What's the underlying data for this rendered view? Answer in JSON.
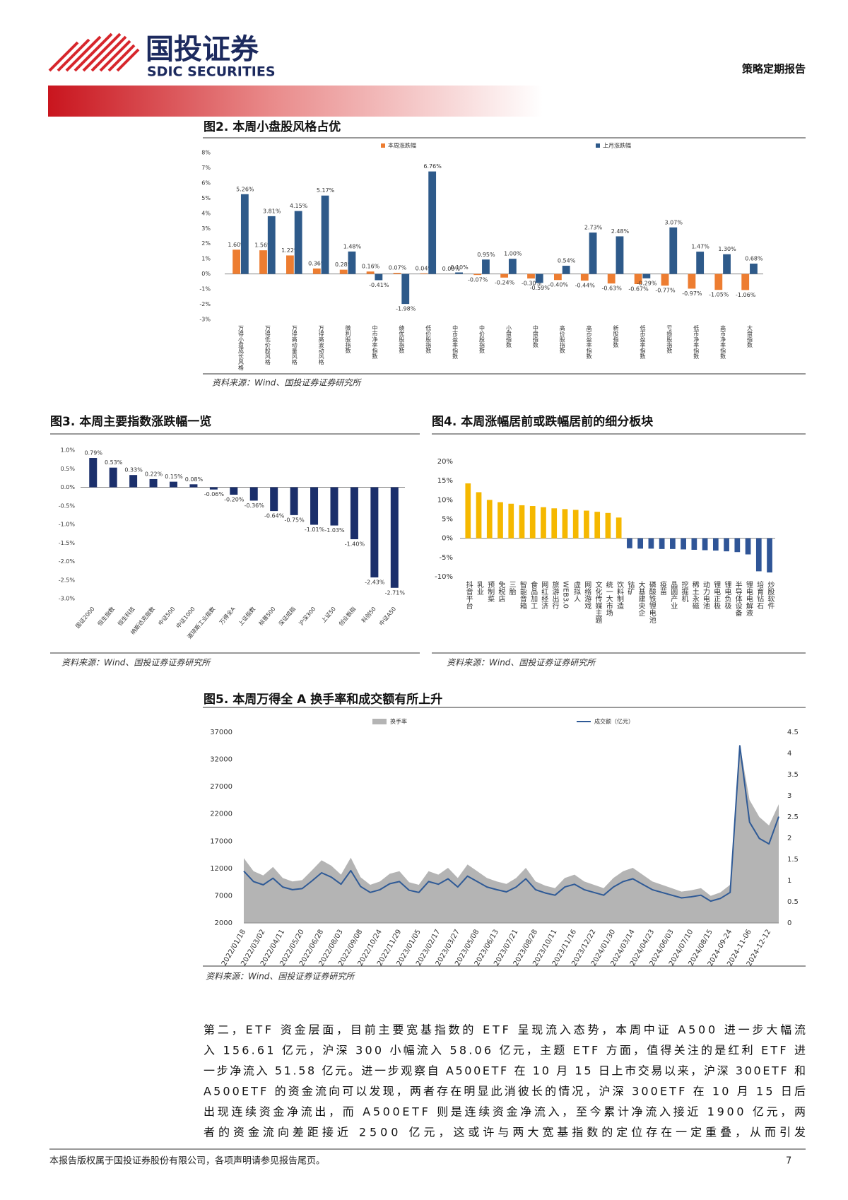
{
  "header": {
    "company": "国投证券",
    "company_en": "SDIC SECURITIES",
    "report_type": "策略定期报告"
  },
  "chart_data": [
    {
      "type": "bar",
      "title": "图2. 本周小盘股风格占优",
      "source": "资料来源：Wind、国投证券证券研究所",
      "categories": [
        "万得小盘成长风格",
        "万得低价股风格",
        "万得高动量风格",
        "万得高波动风格",
        "微利股指数",
        "中市净率指数",
        "绩优股指数",
        "低价股指数",
        "中市盈率指数",
        "中价股指数",
        "小盘指数",
        "中盘指数",
        "高价股指数",
        "高市盈率指数",
        "新股指数",
        "低市盈率指数",
        "亏损股指数",
        "低市净率指数",
        "高市净率指数",
        "大盘指数"
      ],
      "series": [
        {
          "name": "本周涨跌幅",
          "color": "#ed7d31",
          "values": [
            1.6,
            1.56,
            1.22,
            0.36,
            0.28,
            0.16,
            0.07,
            0.04,
            0,
            -0.07,
            -0.24,
            -0.3,
            -0.4,
            -0.44,
            -0.63,
            -0.67,
            -0.77,
            -0.97,
            -1.05,
            -1.06
          ],
          "value_labels": [
            "1.60%",
            "1.56%",
            "1.22%",
            "0.36%",
            "0.28%",
            "0.16%",
            "0.07%",
            "0.04%",
            "0.00%",
            "-0.07%",
            "-0.24%",
            "-0.30%",
            "-0.40%",
            "-0.44%",
            "-0.63%",
            "-0.67%",
            "-0.77%",
            "-0.97%",
            "-1.05%",
            "-1.06%"
          ]
        },
        {
          "name": "上月涨跌幅",
          "color": "#2e5a8a",
          "values": [
            5.26,
            3.81,
            4.15,
            5.17,
            1.48,
            -0.41,
            -1.98,
            6.76,
            0.1,
            0.95,
            1,
            -0.59,
            0.54,
            2.73,
            2.48,
            -0.29,
            3.07,
            1.47,
            1.3,
            0.68
          ],
          "value_labels": [
            "5.26%",
            "3.81%",
            "4.15%",
            "5.17%",
            "1.48%",
            "-0.41%",
            "-1.98%",
            "6.76%",
            "0.10%",
            "0.95%",
            "1.00%",
            "-0.59%",
            "0.54%",
            "2.73%",
            "2.48%",
            "-0.29%",
            "3.07%",
            "1.47%",
            "1.30%",
            "0.68%"
          ]
        }
      ],
      "ylim": [
        -3,
        8
      ],
      "yticks": [
        {
          "value": 8,
          "label": "8%"
        },
        {
          "value": 7,
          "label": "7%"
        },
        {
          "value": 6,
          "label": "6%"
        },
        {
          "value": 5,
          "label": "5%"
        },
        {
          "value": 4,
          "label": "4%"
        },
        {
          "value": 3,
          "label": "3%"
        },
        {
          "value": 2,
          "label": "2%"
        },
        {
          "value": 1,
          "label": "1%"
        },
        {
          "value": 0,
          "label": "0%"
        },
        {
          "value": -1,
          "label": "-1%"
        },
        {
          "value": -2,
          "label": "-2%"
        },
        {
          "value": -3,
          "label": "-3%"
        }
      ],
      "legend": "top"
    },
    {
      "type": "bar",
      "title": "图3. 本周主要指数涨跌幅一览",
      "source": "资料来源：Wind、国投证券证券研究所",
      "categories": [
        "国证2000",
        "恒生指数",
        "恒生科技",
        "纳斯达克指数",
        "中证500",
        "中证1000",
        "道琼斯工业指数",
        "万得全A",
        "上证指数",
        "标普500",
        "深证成指",
        "沪深300",
        "上证50",
        "创业板指",
        "科创50",
        "中证A50"
      ],
      "values": [
        0.79,
        0.53,
        0.33,
        0.22,
        0.15,
        0.08,
        -0.06,
        -0.2,
        -0.36,
        -0.64,
        -0.75,
        -1.01,
        -1.03,
        -1.4,
        -2.43,
        -2.71
      ],
      "value_labels": [
        "0.79%",
        "0.53%",
        "0.33%",
        "0.22%",
        "0.15%",
        "0.08%",
        "-0.06%",
        "-0.20%",
        "-0.36%",
        "-0.64%",
        "-0.75%",
        "-1.01%",
        "-1.03%",
        "-1.40%",
        "-2.43%",
        "-2.71%"
      ],
      "color": "#1b2f6b",
      "ylim": [
        -3,
        1
      ],
      "yticks": [
        {
          "value": 1,
          "label": "1.0%"
        },
        {
          "value": 0.5,
          "label": "0.5%"
        },
        {
          "value": 0,
          "label": "0.0%"
        },
        {
          "value": -0.5,
          "label": "-0.5%"
        },
        {
          "value": -1,
          "label": "-1.0%"
        },
        {
          "value": -1.5,
          "label": "-1.5%"
        },
        {
          "value": -2,
          "label": "-2.0%"
        },
        {
          "value": -2.5,
          "label": "-2.5%"
        },
        {
          "value": -3,
          "label": "-3.0%"
        }
      ]
    },
    {
      "type": "bar",
      "title": "图4. 本周涨幅居前或跌幅居前的细分板块",
      "source": "资料来源：Wind、国投证券证券研究所",
      "categories": [
        "抖音平台",
        "乳业",
        "预制菜",
        "免税店",
        "三胎",
        "智能音箱",
        "食品加工",
        "网红经济",
        "旅游出行",
        "WEB3.0",
        "虚拟人",
        "网络游戏",
        "文化传媒主题",
        "统一大市场",
        "饮料制造",
        "钴矿",
        "大基建央企",
        "磷酸铁锂电池",
        "疫苗",
        "晶圆产业",
        "挖掘机",
        "稀土永磁",
        "动力电池",
        "锂电正极",
        "锂电负极",
        "半导体设备",
        "锂电电解液",
        "培育钻石",
        "炒股软件"
      ],
      "values": [
        14.3,
        12.0,
        10.0,
        9.4,
        9.0,
        8.6,
        8.4,
        8.1,
        7.8,
        7.6,
        7.4,
        7.2,
        6.9,
        6.6,
        5.4,
        -2.6,
        -2.7,
        -2.7,
        -2.8,
        -2.8,
        -2.9,
        -3.0,
        -3.1,
        -3.2,
        -3.4,
        -3.6,
        -4.2,
        -8.6,
        -8.9
      ],
      "color": "#f5b800",
      "negative_color": "#2f5597",
      "ylim": [
        -10,
        20
      ],
      "yticks": [
        {
          "value": 20,
          "label": "20%"
        },
        {
          "value": 15,
          "label": "15%"
        },
        {
          "value": 10,
          "label": "10%"
        },
        {
          "value": 5,
          "label": "5%"
        },
        {
          "value": 0,
          "label": "0%"
        },
        {
          "value": -5,
          "label": "-5%"
        },
        {
          "value": -10,
          "label": "-10%"
        }
      ]
    },
    {
      "type": "line",
      "title": "图5. 本周万得全 A 换手率和成交额有所上升",
      "source": "资料来源：Wind、国投证券证券研究所",
      "categories": [
        "2022/01/18",
        null,
        "2022/03/02",
        null,
        "2022/04/11",
        null,
        "2022/05/20",
        null,
        "2022/06/28",
        null,
        "2022/08/03",
        null,
        "2022/09/08",
        null,
        "2022/10/24",
        null,
        "2022/11/29",
        null,
        "2023/01/05",
        null,
        "2023/02/17",
        null,
        "2023/03/27",
        null,
        "2023/05/08",
        null,
        "2023/06/13",
        null,
        "2023/07/21",
        null,
        "2023/08/28",
        null,
        "2023/10/11",
        null,
        "2023/11/16",
        null,
        "2023/12/22",
        null,
        "2024/01/30",
        null,
        "2024/03/14",
        null,
        "2024/04/23",
        null,
        "2024/06/03",
        null,
        "2024/07/10",
        null,
        "2024/08/15",
        null,
        "2024-09-24",
        null,
        "2024-11-06",
        null,
        "2024-12-12",
        null
      ],
      "series": [
        {
          "name": "换手率",
          "color": "#b4b4b4",
          "axis": "y2",
          "area": true,
          "values": [
            1.53,
            1.22,
            1.12,
            1.32,
            1.06,
            0.98,
            1.01,
            1.24,
            1.48,
            1.35,
            1.14,
            1.54,
            1.08,
            0.9,
            0.98,
            1.16,
            1.22,
            0.96,
            0.9,
            1.22,
            1.14,
            1.3,
            1.06,
            1.38,
            1.22,
            1.06,
            0.98,
            0.92,
            1.06,
            1.3,
            0.98,
            0.88,
            0.82,
            1.06,
            1.14,
            0.98,
            0.9,
            0.82,
            1.06,
            1.22,
            1.3,
            1.14,
            0.98,
            0.9,
            0.82,
            0.74,
            0.77,
            0.82,
            0.64,
            0.72,
            0.9,
            4.2,
            2.9,
            2.5,
            2.3,
            2.8
          ]
        },
        {
          "name": "成交额（亿元）",
          "color": "#2f5a96",
          "values": [
            11500,
            9600,
            9000,
            10200,
            8600,
            8100,
            8300,
            9700,
            11200,
            10400,
            9100,
            11600,
            8700,
            7600,
            8100,
            9200,
            9600,
            8000,
            7600,
            9600,
            9100,
            10100,
            8600,
            10600,
            9600,
            8600,
            8100,
            7700,
            8600,
            10100,
            8100,
            7500,
            7100,
            8600,
            9100,
            8100,
            7600,
            7100,
            8600,
            9600,
            10100,
            9100,
            8100,
            7600,
            7100,
            6600,
            6800,
            7100,
            6000,
            6500,
            7600,
            34500,
            20500,
            17500,
            16500,
            21500
          ]
        }
      ],
      "ylim": [
        2000,
        37000
      ],
      "yticks": [
        2000,
        7000,
        12000,
        17000,
        22000,
        27000,
        32000,
        37000
      ],
      "y2lim": [
        0,
        4.5
      ],
      "y2ticks": [
        0,
        0.5,
        1,
        1.5,
        2,
        2.5,
        3,
        3.5,
        4,
        4.5
      ],
      "legend": "top"
    }
  ],
  "body": {
    "lines": [
      "第二，ETF 资金层面，目前主要宽基指数的 ETF 呈现流入态势，本周中证 A500 进一步大幅流",
      "入 156.61 亿元，沪深 300 小幅流入 58.06 亿元，主题 ETF 方面，值得关注的是红利 ETF 进",
      "一步净流入 51.58 亿元。进一步观察自 A500ETF 在 10 月 15 日上市交易以来，沪深 300ETF 和",
      "A500ETF 的资金流向可以发现，两者存在明显此消彼长的情况，沪深 300ETF 在 10 月 15 日后",
      "出现连续资金净流出，而 A500ETF 则是连续资金净流入，至今累计净流入接近 1900 亿元，两",
      "者的资金流向差距接近 2500 亿元，这或许与两大宽基指数的定位存在一定重叠，从而引发"
    ]
  },
  "footer": {
    "disclaimer": "本报告版权属于国投证券股份有限公司，各项声明请参见报告尾页。",
    "page": 7
  }
}
